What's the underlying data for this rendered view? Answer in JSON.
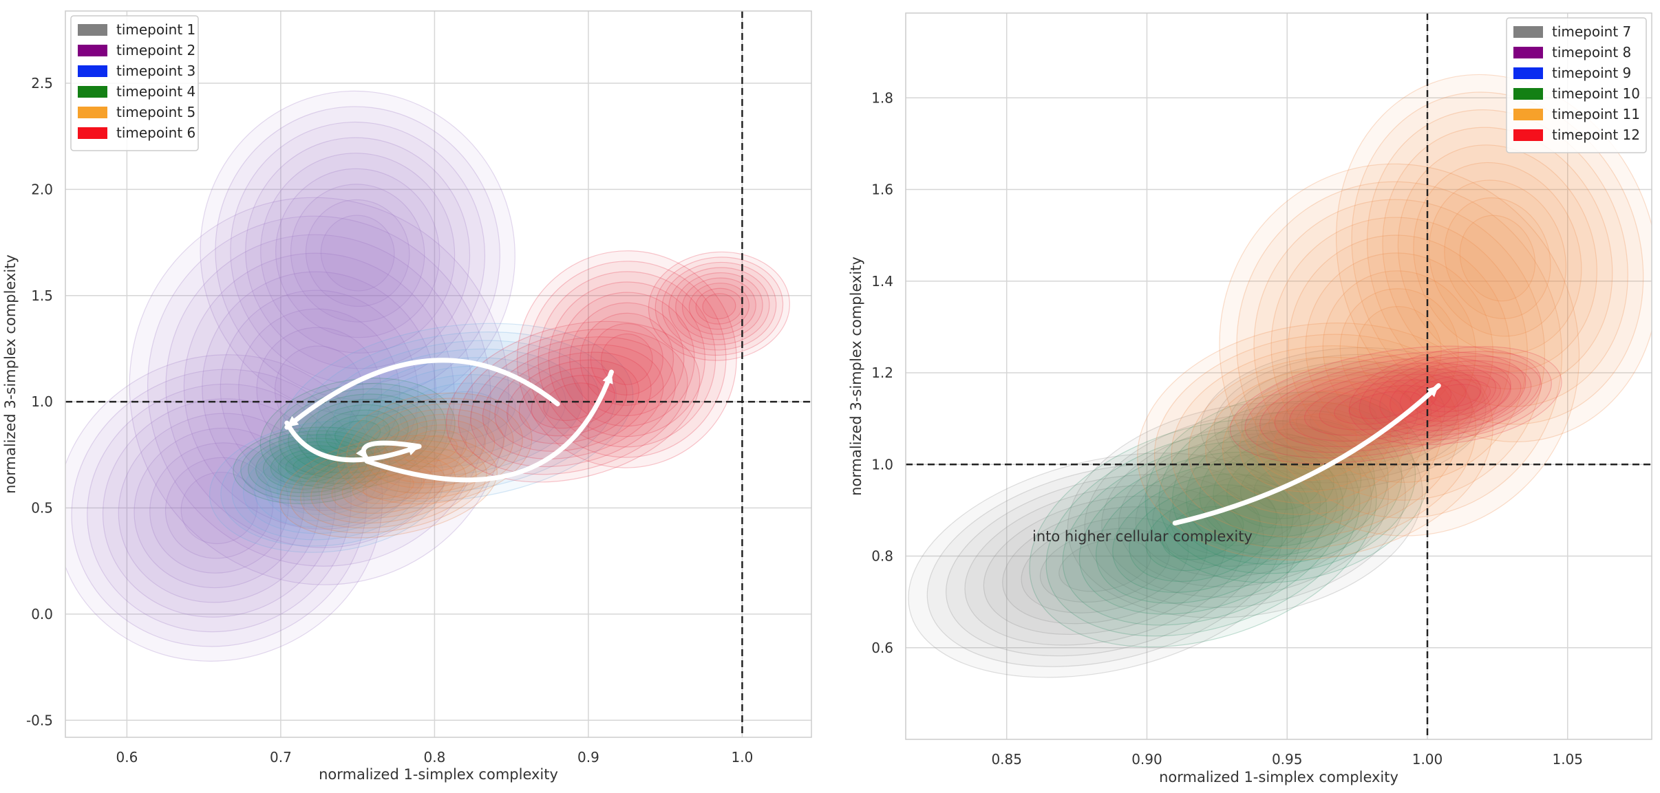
{
  "chart_data": [
    {
      "type": "kde-contour",
      "xlabel": "normalized 1-simplex complexity",
      "ylabel": "normalized 3-simplex complexity",
      "xlim": [
        0.56,
        1.045
      ],
      "ylim": [
        -0.58,
        2.84
      ],
      "xticks": [
        0.6,
        0.7,
        0.8,
        0.9,
        1.0
      ],
      "xtick_labels": [
        "0.6",
        "0.7",
        "0.8",
        "0.9",
        "1.0"
      ],
      "yticks": [
        -0.5,
        0.0,
        0.5,
        1.0,
        1.5,
        2.0,
        2.5
      ],
      "ytick_labels": [
        "-0.5",
        "0.0",
        "0.5",
        "1.0",
        "1.5",
        "2.0",
        "2.5"
      ],
      "grid": true,
      "reference_lines": {
        "x": 1.0,
        "y": 1.0,
        "style": "dashed"
      },
      "legend": {
        "placement": "upper-left",
        "entries": [
          {
            "label": "timepoint 1",
            "color": "#808080"
          },
          {
            "label": "timepoint 2",
            "color": "#800080"
          },
          {
            "label": "timepoint 3",
            "color": "#0a2cf0"
          },
          {
            "label": "timepoint 4",
            "color": "#138014"
          },
          {
            "label": "timepoint 5",
            "color": "#f7a12a"
          },
          {
            "label": "timepoint 6",
            "color": "#f5101c"
          }
        ]
      },
      "densities": [
        {
          "series": "timepoint 2",
          "color": "#9b77c2",
          "peaks": [
            {
              "x": 0.725,
              "y": 1.05,
              "sx": 0.048,
              "sy": 0.36,
              "r": 0.55
            },
            {
              "x": 0.66,
              "y": 0.5,
              "sx": 0.042,
              "sy": 0.28,
              "r": 0.45
            },
            {
              "x": 0.75,
              "y": 1.7,
              "sx": 0.04,
              "sy": 0.3,
              "r": 0.3
            }
          ]
        },
        {
          "series": "timepoint 3",
          "color": "#6aaee0",
          "peaks": [
            {
              "x": 0.815,
              "y": 0.95,
              "sx": 0.045,
              "sy": 0.16,
              "r": 0.3
            },
            {
              "x": 0.73,
              "y": 0.6,
              "sx": 0.03,
              "sy": 0.12,
              "r": 0.2
            }
          ]
        },
        {
          "series": "timepoint 4",
          "color": "#2e8f67",
          "peaks": [
            {
              "x": 0.75,
              "y": 0.85,
              "sx": 0.025,
              "sy": 0.1,
              "r": 0.3
            },
            {
              "x": 0.72,
              "y": 0.7,
              "sx": 0.02,
              "sy": 0.07,
              "r": 0.2
            }
          ]
        },
        {
          "series": "timepoint 5",
          "color": "#e67a3c",
          "peaks": [
            {
              "x": 0.77,
              "y": 0.6,
              "sx": 0.028,
              "sy": 0.09,
              "r": 0.4
            },
            {
              "x": 0.8,
              "y": 0.78,
              "sx": 0.025,
              "sy": 0.1,
              "r": 0.3
            }
          ]
        },
        {
          "series": "timepoint 6",
          "color": "#e5364a",
          "peaks": [
            {
              "x": 0.89,
              "y": 1.0,
              "sx": 0.033,
              "sy": 0.14,
              "r": 0.5
            },
            {
              "x": 0.925,
              "y": 1.2,
              "sx": 0.028,
              "sy": 0.2,
              "r": 0.4
            },
            {
              "x": 0.985,
              "y": 1.45,
              "sx": 0.018,
              "sy": 0.1,
              "r": 0.1
            }
          ]
        }
      ],
      "trajectory": [
        {
          "from": [
            0.88,
            0.99
          ],
          "to": [
            0.704,
            0.88
          ],
          "via": [
            0.8,
            1.45
          ]
        },
        {
          "from": [
            0.704,
            0.9
          ],
          "to": [
            0.79,
            0.79
          ],
          "via": [
            0.725,
            0.62
          ]
        },
        {
          "from": [
            0.79,
            0.79
          ],
          "to": [
            0.756,
            0.73
          ],
          "via": [
            0.745,
            0.84
          ]
        },
        {
          "from": [
            0.756,
            0.72
          ],
          "to": [
            0.915,
            1.14
          ],
          "via": [
            0.88,
            0.42
          ]
        }
      ]
    },
    {
      "type": "kde-contour",
      "xlabel": "normalized 1-simplex complexity",
      "ylabel": "normalized 3-simplex complexity",
      "xlim": [
        0.814,
        1.08
      ],
      "ylim": [
        0.4,
        1.985
      ],
      "xticks": [
        0.85,
        0.9,
        0.95,
        1.0,
        1.05
      ],
      "xtick_labels": [
        "0.85",
        "0.90",
        "0.95",
        "1.00",
        "1.05"
      ],
      "yticks": [
        0.6,
        0.8,
        1.0,
        1.2,
        1.4,
        1.6,
        1.8
      ],
      "ytick_labels": [
        "0.6",
        "0.8",
        "1.0",
        "1.2",
        "1.4",
        "1.6",
        "1.8"
      ],
      "grid": true,
      "reference_lines": {
        "x": 1.0,
        "y": 1.0,
        "style": "dashed"
      },
      "legend": {
        "placement": "upper-right",
        "entries": [
          {
            "label": "timepoint 7",
            "color": "#808080"
          },
          {
            "label": "timepoint 8",
            "color": "#800080"
          },
          {
            "label": "timepoint 9",
            "color": "#0a2cf0"
          },
          {
            "label": "timepoint 10",
            "color": "#138014"
          },
          {
            "label": "timepoint 11",
            "color": "#f7a12a"
          },
          {
            "label": "timepoint 12",
            "color": "#f5101c"
          }
        ]
      },
      "densities": [
        {
          "series": "timepoint 7",
          "color": "#8a8a8a",
          "peaks": [
            {
              "x": 0.885,
              "y": 0.78,
              "sx": 0.028,
              "sy": 0.09,
              "r": 0.5
            },
            {
              "x": 0.935,
              "y": 0.9,
              "sx": 0.025,
              "sy": 0.09,
              "r": 0.3
            },
            {
              "x": 0.97,
              "y": 1.1,
              "sx": 0.02,
              "sy": 0.06,
              "r": 0.2
            }
          ]
        },
        {
          "series": "timepoint 10",
          "color": "#2e8f67",
          "peaks": [
            {
              "x": 0.92,
              "y": 0.85,
              "sx": 0.025,
              "sy": 0.09,
              "r": 0.6
            },
            {
              "x": 0.95,
              "y": 0.95,
              "sx": 0.02,
              "sy": 0.08,
              "r": 0.3
            }
          ]
        },
        {
          "series": "timepoint 11",
          "color": "#ec8a48",
          "peaks": [
            {
              "x": 0.99,
              "y": 1.25,
              "sx": 0.025,
              "sy": 0.16,
              "r": 0.4
            },
            {
              "x": 1.025,
              "y": 1.45,
              "sx": 0.022,
              "sy": 0.16,
              "r": 0.35
            },
            {
              "x": 0.96,
              "y": 1.05,
              "sx": 0.025,
              "sy": 0.1,
              "r": 0.25
            }
          ]
        },
        {
          "series": "timepoint 12",
          "color": "#e5364a",
          "peaks": [
            {
              "x": 0.985,
              "y": 1.13,
              "sx": 0.022,
              "sy": 0.045,
              "r": 0.6
            },
            {
              "x": 1.01,
              "y": 1.15,
              "sx": 0.015,
              "sy": 0.04,
              "r": 0.4
            }
          ]
        }
      ],
      "trajectory": [
        {
          "from": [
            0.91,
            0.872
          ],
          "to": [
            1.004,
            1.172
          ],
          "via": [
            0.965,
            0.95
          ]
        }
      ],
      "annotations": [
        {
          "text": "into higher cellular complexity",
          "x": 0.86,
          "y": 0.845
        }
      ]
    }
  ]
}
